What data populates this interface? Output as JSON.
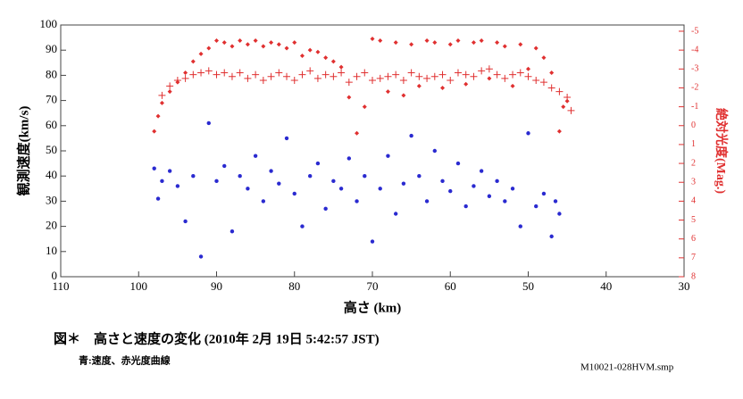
{
  "chart_data": {
    "type": "scatter",
    "title": "図＊　高さと速度の変化 (2010年 2月 19日 5:42:57 JST)",
    "subtitle": "青:速度、赤光度曲線",
    "annotation": "M10021-028HVM.smp",
    "x_label": "高さ (km)",
    "y_label": "観測速度(km/s)",
    "y2_label": "絶対光度(Mag.)",
    "xlim": [
      110,
      30
    ],
    "xticks": [
      110,
      100,
      90,
      80,
      70,
      60,
      50,
      40,
      30
    ],
    "ylim": [
      0,
      100
    ],
    "yticks": [
      0,
      10,
      20,
      30,
      40,
      50,
      60,
      70,
      80,
      90,
      100
    ],
    "y2lim": [
      8,
      -5.33
    ],
    "y2ticks": [
      -5,
      -4,
      -3,
      -2,
      -1,
      0,
      1,
      2,
      3,
      4,
      5,
      6,
      7,
      8
    ],
    "y2_color": "#e03030",
    "series": [
      {
        "color": "#2a2ad0",
        "marker": "circle",
        "axis": "y",
        "x": [
          98,
          97.5,
          97,
          96,
          95,
          94,
          93,
          92,
          91,
          90,
          89,
          88,
          87,
          86,
          85,
          84,
          83,
          82,
          81,
          80,
          79,
          78,
          77,
          76,
          75,
          74,
          73,
          72,
          71,
          70,
          69,
          68,
          67,
          66,
          65,
          64,
          63,
          62,
          61,
          60,
          59,
          58,
          57,
          56,
          55,
          54,
          53,
          52,
          51,
          50,
          49,
          48,
          47,
          46.5,
          46
        ],
        "values": [
          43,
          31,
          38,
          42,
          36,
          22,
          40,
          8,
          61,
          38,
          44,
          18,
          40,
          35,
          48,
          30,
          42,
          37,
          55,
          33,
          20,
          40,
          45,
          27,
          38,
          35,
          47,
          30,
          40,
          14,
          35,
          48,
          25,
          37,
          56,
          40,
          30,
          50,
          38,
          34,
          45,
          28,
          36,
          42,
          32,
          38,
          30,
          35,
          20,
          57,
          28,
          33,
          16,
          30,
          25
        ]
      },
      {
        "color": "#e03030",
        "marker": "diamond",
        "axis": "y2",
        "x": [
          98,
          97.5,
          97,
          96,
          95,
          94,
          93,
          92,
          91,
          90,
          89,
          88,
          87,
          86,
          85,
          84,
          83,
          82,
          81,
          80,
          79,
          78,
          77,
          76,
          75,
          74,
          73,
          72,
          71,
          70,
          69,
          68,
          67,
          66,
          65,
          64,
          63,
          62,
          61,
          60,
          59,
          58,
          57,
          56,
          55,
          54,
          53,
          52,
          51,
          50,
          49,
          48,
          47,
          46,
          45.5,
          45
        ],
        "values": [
          0.3,
          -0.5,
          -1.2,
          -1.8,
          -2.3,
          -2.8,
          -3.4,
          -3.8,
          -4.1,
          -4.5,
          -4.4,
          -4.2,
          -4.5,
          -4.3,
          -4.5,
          -4.2,
          -4.4,
          -4.3,
          -4.1,
          -4.4,
          -3.7,
          -4.0,
          -3.9,
          -3.6,
          -3.4,
          -3.1,
          -1.5,
          0.4,
          -1.0,
          -4.6,
          -4.5,
          -1.8,
          -4.4,
          -1.6,
          -4.3,
          -2.1,
          -4.5,
          -4.4,
          -2.0,
          -4.3,
          -4.5,
          -2.2,
          -4.4,
          -4.5,
          -2.5,
          -4.4,
          -4.2,
          -2.1,
          -4.3,
          -3.0,
          -4.1,
          -3.6,
          -2.8,
          0.3,
          -1.0,
          -1.3
        ]
      },
      {
        "color": "#e03030",
        "marker": "plus",
        "axis": "y2",
        "x": [
          97,
          96,
          95,
          94,
          93,
          92,
          91,
          90,
          89,
          88,
          87,
          86,
          85,
          84,
          83,
          82,
          81,
          80,
          79,
          78,
          77,
          76,
          75,
          74,
          73,
          72,
          71,
          70,
          69,
          68,
          67,
          66,
          65,
          64,
          63,
          62,
          61,
          60,
          59,
          58,
          57,
          56,
          55,
          54,
          53,
          52,
          51,
          50,
          49,
          48,
          47,
          46,
          45,
          44.5
        ],
        "values": [
          -1.6,
          -2.1,
          -2.4,
          -2.5,
          -2.7,
          -2.8,
          -2.9,
          -2.7,
          -2.8,
          -2.6,
          -2.8,
          -2.5,
          -2.7,
          -2.4,
          -2.6,
          -2.8,
          -2.6,
          -2.4,
          -2.7,
          -2.9,
          -2.5,
          -2.7,
          -2.6,
          -2.8,
          -2.3,
          -2.6,
          -2.8,
          -2.4,
          -2.5,
          -2.6,
          -2.7,
          -2.4,
          -2.8,
          -2.6,
          -2.5,
          -2.6,
          -2.7,
          -2.4,
          -2.8,
          -2.7,
          -2.6,
          -2.9,
          -3.0,
          -2.7,
          -2.5,
          -2.7,
          -2.8,
          -2.6,
          -2.4,
          -2.3,
          -2.0,
          -1.8,
          -1.5,
          -0.8
        ]
      }
    ]
  }
}
